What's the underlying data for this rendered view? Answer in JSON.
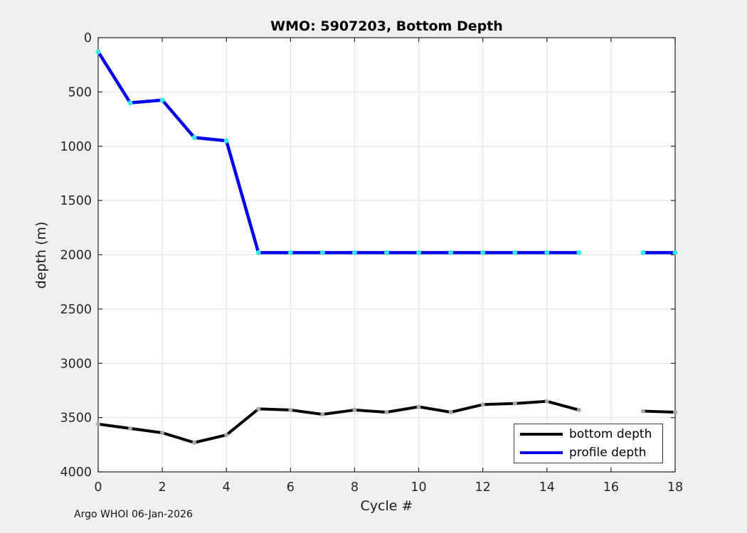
{
  "figure": {
    "footer": "Argo WHOI 06-Jan-2026"
  },
  "legend": {
    "items": [
      {
        "label": "bottom depth",
        "color": "#000000"
      },
      {
        "label": "profile depth",
        "color": "#0000ee"
      }
    ]
  },
  "colors": {
    "figure_bg": "#f0f0f0",
    "plot_bg": "#ffffff",
    "grid": "#e0e0e0",
    "axis": "#262626",
    "blue_line": "#0000ee",
    "cyan_marker": "#3ae6e6",
    "black_line": "#000000",
    "gray_marker": "#a6a6a6"
  },
  "chart_data": {
    "type": "line",
    "title": "WMO: 5907203, Bottom Depth",
    "xlabel": "Cycle #",
    "ylabel": "depth (m)",
    "x": [
      0,
      1,
      2,
      3,
      4,
      5,
      6,
      7,
      8,
      9,
      10,
      11,
      12,
      13,
      14,
      15,
      16,
      17,
      18
    ],
    "series": [
      {
        "name": "bottom depth",
        "color": "#000000",
        "marker_color": "#a6a6a6",
        "line_width": 4,
        "marker_radius": 3,
        "values": [
          3560,
          3600,
          3640,
          3730,
          3660,
          3420,
          3430,
          3470,
          3430,
          3450,
          3400,
          3450,
          3380,
          3370,
          3350,
          3430,
          null,
          3440,
          3450
        ]
      },
      {
        "name": "profile depth",
        "color": "#0000ee",
        "marker_color": "#3ae6e6",
        "line_width": 4.5,
        "marker_radius": 3.5,
        "values": [
          130,
          600,
          575,
          920,
          950,
          1980,
          1980,
          1980,
          1980,
          1980,
          1980,
          1980,
          1980,
          1980,
          1980,
          1980,
          null,
          1980,
          1980
        ]
      }
    ],
    "xlim": [
      0,
      18
    ],
    "ylim": [
      0,
      4000
    ],
    "y_inverted": true,
    "xticks": [
      0,
      2,
      4,
      6,
      8,
      10,
      12,
      14,
      16,
      18
    ],
    "yticks": [
      0,
      500,
      1000,
      1500,
      2000,
      2500,
      3000,
      3500,
      4000
    ],
    "grid": true,
    "legend_position": "southeast"
  }
}
